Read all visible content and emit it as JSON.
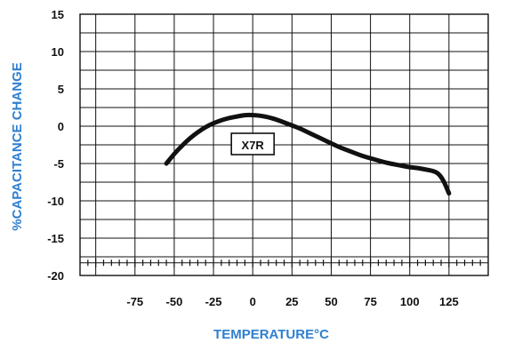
{
  "chart_data": {
    "type": "line",
    "title": "",
    "xlabel": "TEMPERATURE°C",
    "ylabel": "%CAPACITANCE CHANGE",
    "xlim": [
      -110,
      150
    ],
    "ylim": [
      -20,
      15
    ],
    "x_ticks": [
      -75,
      -50,
      -25,
      0,
      25,
      50,
      75,
      100,
      125
    ],
    "x_tick_labels": [
      "-75",
      "-50",
      "-25",
      "0",
      "25",
      "50",
      "75",
      "100",
      "125"
    ],
    "y_ticks": [
      15,
      10,
      5,
      0,
      -5,
      -10,
      -15,
      -20
    ],
    "y_tick_labels": [
      "15",
      "10",
      "5",
      "0",
      "-5",
      "-10",
      "-15",
      "-20"
    ],
    "grid": true,
    "series": [
      {
        "name": "X7R",
        "x": [
          -55,
          -50,
          -45,
          -40,
          -35,
          -30,
          -25,
          -20,
          -15,
          -10,
          -5,
          0,
          5,
          10,
          15,
          20,
          25,
          30,
          35,
          40,
          45,
          50,
          55,
          60,
          65,
          70,
          75,
          80,
          85,
          90,
          95,
          100,
          105,
          110,
          115,
          118,
          120,
          122,
          125
        ],
        "y": [
          -5.0,
          -3.7,
          -2.6,
          -1.6,
          -0.8,
          -0.1,
          0.4,
          0.8,
          1.1,
          1.3,
          1.5,
          1.5,
          1.4,
          1.2,
          0.9,
          0.5,
          0.1,
          -0.3,
          -0.8,
          -1.3,
          -1.8,
          -2.3,
          -2.8,
          -3.2,
          -3.6,
          -4.0,
          -4.3,
          -4.6,
          -4.9,
          -5.1,
          -5.3,
          -5.5,
          -5.6,
          -5.8,
          -6.0,
          -6.3,
          -6.8,
          -7.5,
          -9.0
        ]
      }
    ],
    "annotations": [
      {
        "text": "X7R",
        "x": 0,
        "y": -2.5
      }
    ],
    "colors": {
      "axis_text": "#2f7fd0",
      "tick_text": "#111111",
      "grid": "#111111",
      "curve": "#111111",
      "background": "#ffffff"
    }
  }
}
